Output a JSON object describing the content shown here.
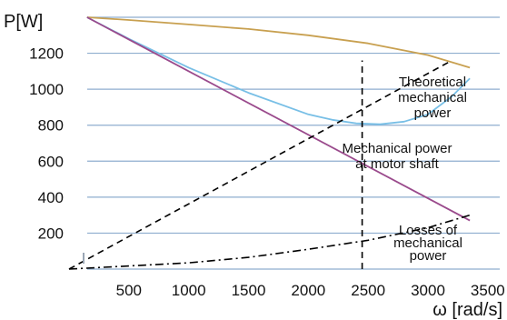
{
  "chart_data": {
    "type": "line",
    "title": "",
    "ylabel": "P[W]",
    "xlabel": "ω [rad/s]",
    "xlim": [
      0,
      3600
    ],
    "ylim": [
      0,
      1400
    ],
    "y_ticks": [
      "200",
      "400",
      "600",
      "800",
      "1000",
      "1200"
    ],
    "x_ticks": [
      "500",
      "1000",
      "1500",
      "2000",
      "2500",
      "3000",
      "3500"
    ],
    "grid": "horizontal",
    "colors": {
      "grid": "#8faecf",
      "tan": "#c8a050",
      "blue": "#78bfe6",
      "purple": "#9a4a8c",
      "black": "#000000"
    },
    "series": [
      {
        "color": "tan",
        "dash": "solid",
        "x": [
          150,
          500,
          1000,
          1500,
          2000,
          2500,
          3000,
          3350
        ],
        "y": [
          1400,
          1385,
          1360,
          1335,
          1300,
          1255,
          1190,
          1120
        ]
      },
      {
        "color": "blue",
        "dash": "solid",
        "x": [
          150,
          500,
          1000,
          1500,
          2000,
          2200,
          2400,
          2600,
          2800,
          3000,
          3200,
          3350
        ],
        "y": [
          1400,
          1280,
          1120,
          980,
          860,
          830,
          810,
          805,
          820,
          860,
          960,
          1060
        ]
      },
      {
        "color": "purple",
        "dash": "solid",
        "x": [
          150,
          3350
        ],
        "y": [
          1400,
          270
        ]
      },
      {
        "color": "black",
        "dash": "dash",
        "x": [
          0,
          3200
        ],
        "y": [
          0,
          1160
        ]
      },
      {
        "color": "black",
        "dash": "dashdot",
        "x": [
          0,
          1000,
          1500,
          2000,
          2500,
          3000,
          3350
        ],
        "y": [
          0,
          35,
          65,
          110,
          160,
          230,
          300
        ]
      }
    ],
    "vline": {
      "x": 2450,
      "y_from": 0,
      "y_to": 1160,
      "dash": "dash"
    },
    "annotations": {
      "theoretical": [
        "Theoretical",
        "mechanical",
        "power"
      ],
      "shaft": [
        "Mechanical power",
        "at motor shaft"
      ],
      "losses": [
        "Losses of",
        "mechanical",
        "power"
      ]
    }
  }
}
